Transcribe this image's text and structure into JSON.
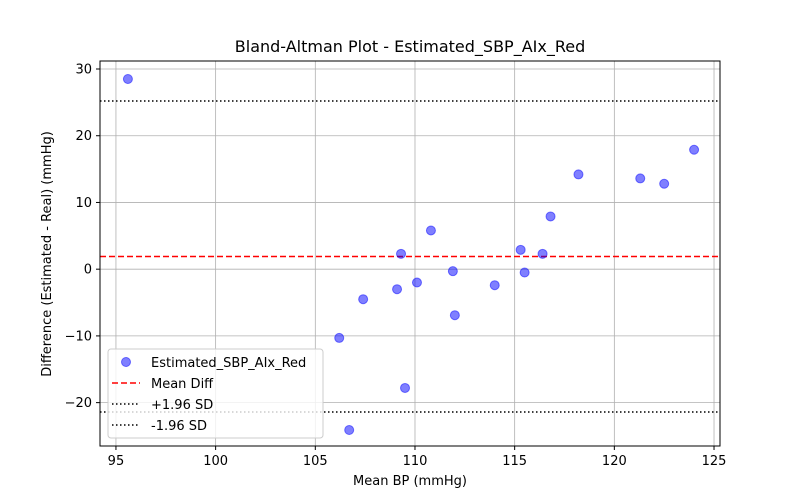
{
  "chart_data": {
    "type": "scatter",
    "title": "Bland-Altman Plot - Estimated_SBP_AIx_Red",
    "xlabel": "Mean BP (mmHg)",
    "ylabel": "Difference (Estimated - Real) (mmHg)",
    "xlim": [
      94.2,
      125.3
    ],
    "ylim": [
      -26.5,
      31.2
    ],
    "xticks": [
      95,
      100,
      105,
      110,
      115,
      120,
      125
    ],
    "yticks": [
      -20,
      -10,
      0,
      10,
      20,
      30
    ],
    "grid": true,
    "legend_position": "lower-left",
    "series": [
      {
        "name": "Estimated_SBP_AIx_Red",
        "marker": "circle",
        "color": "#0000ff",
        "alpha": 0.5,
        "points": [
          [
            95.6,
            28.5
          ],
          [
            106.2,
            -10.3
          ],
          [
            106.7,
            -24.1
          ],
          [
            107.4,
            -4.5
          ],
          [
            109.1,
            -3.0
          ],
          [
            109.3,
            2.3
          ],
          [
            109.5,
            -17.8
          ],
          [
            110.1,
            -2.0
          ],
          [
            110.8,
            5.8
          ],
          [
            111.9,
            -0.3
          ],
          [
            112.0,
            -6.9
          ],
          [
            114.0,
            -2.4
          ],
          [
            115.3,
            2.9
          ],
          [
            115.5,
            -0.5
          ],
          [
            116.4,
            2.3
          ],
          [
            116.8,
            7.9
          ],
          [
            118.2,
            14.2
          ],
          [
            121.3,
            13.6
          ],
          [
            122.5,
            12.8
          ],
          [
            124.0,
            17.9
          ]
        ]
      }
    ],
    "reference_lines": [
      {
        "name": "Mean Diff",
        "y": 1.9,
        "color": "#ff0000",
        "style": "dashed"
      },
      {
        "name": "+1.96 SD",
        "y": 25.2,
        "color": "#000000",
        "style": "dotted"
      },
      {
        "name": "-1.96 SD",
        "y": -21.4,
        "color": "#000000",
        "style": "dotted"
      }
    ]
  }
}
